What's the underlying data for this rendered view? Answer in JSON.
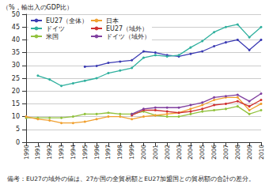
{
  "chart_data": {
    "type": "line",
    "y_label": "（%，輸出入のGDP比）",
    "note": "備考：EU27の域外の値は、27か国の全貿易額とEU27加盟国との貿易額の合計の差分。",
    "categories": [
      "1990",
      "1991",
      "1992",
      "1993",
      "1994",
      "1995",
      "1996",
      "1997",
      "1998",
      "1999",
      "2000",
      "2001",
      "2002",
      "2003",
      "2004",
      "2005",
      "2006",
      "2007",
      "2008",
      "2009",
      "2010"
    ],
    "series": [
      {
        "name": "EU27（全体）",
        "color": "#3c3cb4",
        "marker": "circle",
        "values": [
          null,
          null,
          null,
          null,
          null,
          29.5,
          29.8,
          31,
          31.5,
          32,
          35.5,
          35,
          34,
          33.5,
          34.5,
          35.5,
          37.5,
          39,
          40,
          36,
          40
        ]
      },
      {
        "name": "ドイツ",
        "color": "#2fb09e",
        "marker": "circle",
        "values": [
          null,
          26,
          24.5,
          22,
          23,
          24,
          25,
          27,
          28,
          29,
          33,
          34,
          33.5,
          34,
          37,
          39.5,
          43,
          45,
          46,
          41,
          45
        ]
      },
      {
        "name": "米国",
        "color": "#92c23e",
        "marker": "circle",
        "values": [
          9.5,
          9.5,
          9.5,
          9.5,
          10,
          11,
          11,
          11.5,
          11,
          11,
          12,
          10.5,
          10,
          10,
          11,
          12,
          12.5,
          13,
          14,
          11,
          12.5
        ]
      },
      {
        "name": "日本",
        "color": "#f0a030",
        "marker": "circle",
        "values": [
          10,
          9,
          8.5,
          7.5,
          7.5,
          8,
          9,
          10,
          10,
          9,
          10,
          10.5,
          11,
          11.5,
          13,
          14.5,
          16.5,
          17.5,
          17.5,
          12.5,
          15
        ]
      },
      {
        "name": "EU27（域外）",
        "color": "#d03030",
        "marker": "circle",
        "values": [
          null,
          null,
          null,
          null,
          null,
          null,
          null,
          null,
          null,
          10.5,
          12.5,
          12.5,
          12,
          11.5,
          12,
          13,
          14.5,
          15,
          16,
          14,
          16.5
        ]
      },
      {
        "name": "ドイツ（域外）",
        "color": "#8040a0",
        "marker": "circle",
        "values": [
          null,
          null,
          null,
          null,
          null,
          null,
          null,
          null,
          null,
          11,
          13,
          13.5,
          13.5,
          13.5,
          14.5,
          15.5,
          17.5,
          18,
          18.5,
          16,
          19
        ]
      }
    ],
    "ylim": [
      0,
      50
    ],
    "yticks": [
      0,
      5,
      10,
      15,
      20,
      25,
      30,
      35,
      40,
      45,
      50
    ],
    "grid": true,
    "legend": "upper left"
  }
}
